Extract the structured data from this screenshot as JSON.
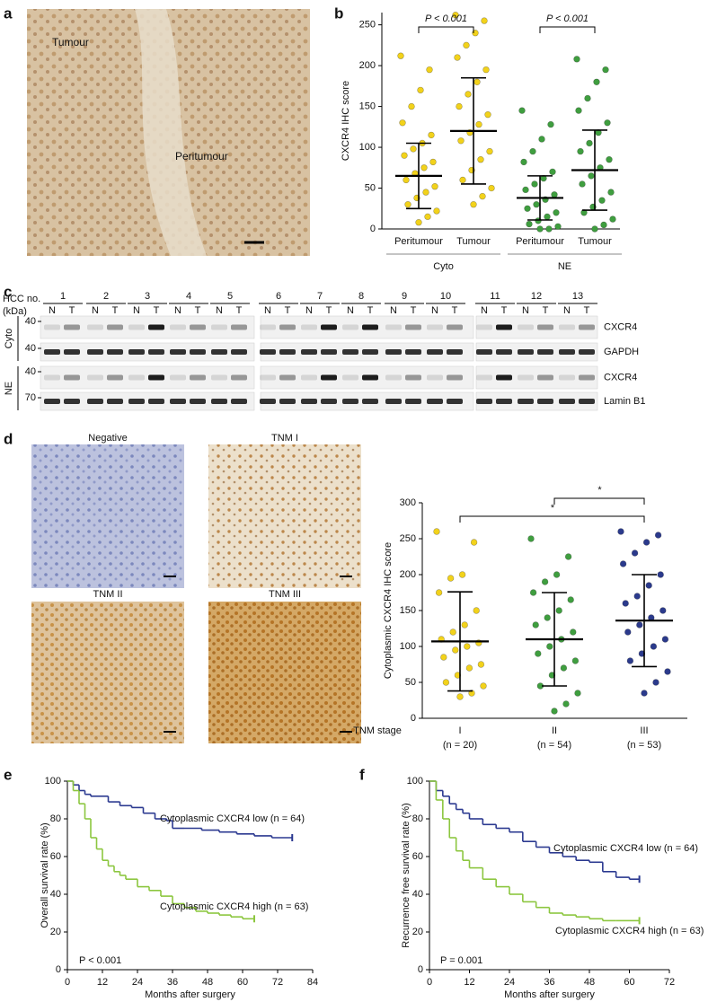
{
  "figure": {
    "panel_a": {
      "letter": "a",
      "labels": [
        "Tumour",
        "Peritumour"
      ]
    },
    "panel_c": {
      "letter": "c",
      "hcc_label": "HCC no.",
      "kda_label": "(kDa)",
      "samples": [
        1,
        2,
        3,
        4,
        5,
        6,
        7,
        8,
        9,
        10,
        11,
        12,
        13
      ],
      "lane_labels": [
        "N",
        "T"
      ],
      "fractions": [
        "Cyto",
        "NE"
      ],
      "markers": [
        40,
        40,
        40,
        70
      ],
      "proteins": [
        "CXCR4",
        "GAPDH",
        "CXCR4",
        "Lamin B1"
      ]
    },
    "panel_d": {
      "letter": "d",
      "titles": [
        "Negative",
        "TNM I",
        "TNM II",
        "TNM III"
      ]
    }
  },
  "chart_data": [
    {
      "type": "dotplot",
      "letter": "b",
      "ylabel": "CXCR4 IHC score",
      "categories": [
        "Peritumour",
        "Tumour",
        "Peritumour",
        "Tumour"
      ],
      "groups": [
        "Cyto",
        "NE"
      ],
      "annotations": [
        "P < 0.001",
        "P < 0.001"
      ],
      "colors": [
        "#f2d21b",
        "#f2d21b",
        "#3f9e3f",
        "#3f9e3f"
      ],
      "points": [
        [
          212,
          195,
          170,
          150,
          130,
          115,
          105,
          98,
          90,
          82,
          75,
          68,
          60,
          52,
          45,
          38,
          30,
          22,
          15,
          8
        ],
        [
          262,
          255,
          240,
          225,
          210,
          195,
          180,
          165,
          150,
          140,
          128,
          118,
          108,
          95,
          85,
          72,
          60,
          50,
          40,
          30
        ],
        [
          145,
          128,
          110,
          95,
          82,
          70,
          62,
          55,
          48,
          42,
          36,
          30,
          25,
          20,
          15,
          10,
          6,
          3,
          0,
          0
        ],
        [
          208,
          195,
          180,
          160,
          145,
          130,
          118,
          105,
          95,
          85,
          75,
          65,
          55,
          45,
          35,
          27,
          20,
          12,
          5,
          0
        ]
      ],
      "means": [
        65,
        120,
        38,
        72
      ],
      "sd": [
        40,
        65,
        27,
        49
      ],
      "ylim": [
        0,
        265
      ],
      "yticks": [
        0,
        50,
        100,
        150,
        200,
        250
      ]
    },
    {
      "type": "dotplot",
      "ylabel": "Cytoplasmic CXCR4 IHC score",
      "xlabel": "TNM stage",
      "categories": [
        "I",
        "II",
        "III"
      ],
      "n_labels": [
        "(n = 20)",
        "(n = 54)",
        "(n = 53)"
      ],
      "annotations": [
        "*",
        "*"
      ],
      "colors": [
        "#f2d21b",
        "#3f9e3f",
        "#2b3a8c"
      ],
      "points": [
        [
          260,
          245,
          200,
          195,
          175,
          150,
          130,
          120,
          110,
          105,
          100,
          95,
          85,
          75,
          70,
          60,
          50,
          45,
          35,
          30
        ],
        [
          250,
          225,
          200,
          190,
          175,
          165,
          150,
          140,
          130,
          120,
          110,
          100,
          90,
          80,
          70,
          60,
          45,
          35,
          20,
          10
        ],
        [
          260,
          255,
          245,
          230,
          215,
          200,
          185,
          170,
          160,
          150,
          140,
          130,
          120,
          110,
          100,
          90,
          80,
          65,
          50,
          35
        ]
      ],
      "means": [
        107,
        110,
        136
      ],
      "sd": [
        69,
        65,
        64
      ],
      "ylim": [
        0,
        300
      ],
      "yticks": [
        0,
        50,
        100,
        150,
        200,
        250,
        300
      ]
    },
    {
      "type": "survival",
      "letter": "e",
      "ylabel": "Overall survival rate (%)",
      "xlabel": "Months after surgery",
      "annotation": "P < 0.001",
      "series": [
        {
          "name": "Cytoplasmic CXCR4 low (n = 64)",
          "color": "#2b3990",
          "x": [
            0,
            2,
            4,
            6,
            8,
            10,
            14,
            18,
            22,
            26,
            30,
            34,
            36,
            40,
            46,
            52,
            58,
            64,
            70,
            77
          ],
          "values": [
            100,
            98,
            95,
            93,
            92,
            92,
            89,
            87,
            86,
            83,
            80,
            79,
            75,
            75,
            74,
            73,
            72,
            71,
            70,
            70
          ]
        },
        {
          "name": "Cytoplasmic CXCR4 high (n = 63)",
          "color": "#8cc63f",
          "x": [
            0,
            2,
            4,
            6,
            8,
            10,
            12,
            14,
            16,
            18,
            20,
            24,
            28,
            32,
            36,
            40,
            44,
            48,
            52,
            56,
            60,
            64
          ],
          "values": [
            100,
            95,
            88,
            80,
            70,
            64,
            58,
            55,
            52,
            50,
            48,
            44,
            42,
            39,
            35,
            33,
            31,
            30,
            29,
            28,
            27,
            27
          ]
        }
      ],
      "xlim": [
        0,
        84
      ],
      "xticks": [
        0,
        12,
        24,
        36,
        48,
        60,
        72,
        84
      ],
      "ylim": [
        0,
        100
      ],
      "yticks": [
        0,
        20,
        40,
        60,
        80,
        100
      ]
    },
    {
      "type": "survival",
      "letter": "f",
      "ylabel": "Recurrence free survival rate (%)",
      "xlabel": "Months after surgery",
      "annotation": "P = 0.001",
      "series": [
        {
          "name": "Cytoplasmic CXCR4 low (n = 64)",
          "color": "#2b3990",
          "x": [
            0,
            2,
            4,
            6,
            8,
            10,
            12,
            16,
            20,
            24,
            28,
            32,
            36,
            40,
            44,
            48,
            52,
            56,
            60,
            63
          ],
          "values": [
            100,
            95,
            92,
            88,
            85,
            83,
            80,
            77,
            75,
            73,
            68,
            65,
            62,
            60,
            58,
            57,
            52,
            49,
            48,
            48
          ]
        },
        {
          "name": "Cytoplasmic CXCR4 high (n = 63)",
          "color": "#8cc63f",
          "x": [
            0,
            2,
            4,
            6,
            8,
            10,
            12,
            16,
            20,
            24,
            28,
            32,
            36,
            40,
            44,
            48,
            52,
            56,
            60,
            63
          ],
          "values": [
            100,
            90,
            80,
            70,
            63,
            58,
            54,
            48,
            44,
            40,
            36,
            33,
            30,
            29,
            28,
            27,
            26,
            26,
            26,
            26
          ]
        }
      ],
      "xlim": [
        0,
        72
      ],
      "xticks": [
        0,
        12,
        24,
        36,
        48,
        60,
        72
      ],
      "ylim": [
        0,
        100
      ],
      "yticks": [
        0,
        20,
        40,
        60,
        80,
        100
      ]
    }
  ]
}
